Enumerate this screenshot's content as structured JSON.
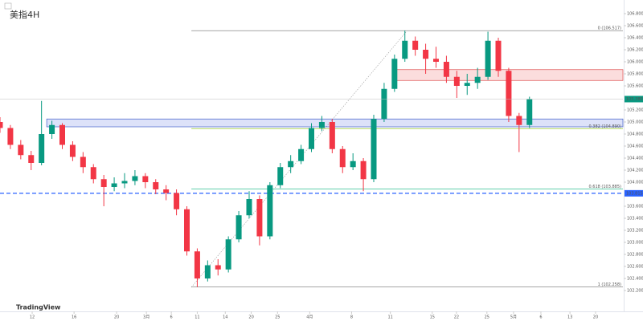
{
  "chart_data": {
    "type": "candlestick",
    "title": "美指4H",
    "watermark": "TradingView",
    "up_color": "#089981",
    "down_color": "#f23645",
    "xlim": [
      0,
      180
    ],
    "ylim": [
      102.0,
      107.0
    ],
    "grid": false,
    "x": [
      0,
      3,
      6,
      9,
      12,
      15,
      18,
      21,
      24,
      27,
      30,
      33,
      36,
      39,
      42,
      45,
      48,
      51,
      54,
      57,
      60,
      63,
      66,
      69,
      72,
      75,
      78,
      81,
      84,
      87,
      90,
      93,
      96,
      99,
      102,
      105,
      108,
      111,
      114,
      117,
      120,
      123,
      126,
      129,
      132,
      135,
      138,
      141,
      144,
      147,
      150,
      153
    ],
    "open": [
      105.0,
      104.9,
      104.62,
      104.45,
      104.32,
      104.8,
      104.95,
      104.62,
      104.42,
      104.25,
      104.05,
      103.92,
      103.98,
      104.02,
      104.1,
      104.0,
      103.88,
      103.82,
      103.55,
      102.85,
      102.4,
      102.62,
      102.55,
      103.05,
      103.45,
      103.72,
      103.1,
      103.95,
      104.25,
      104.35,
      104.55,
      104.9,
      105.0,
      104.55,
      104.25,
      104.35,
      104.05,
      105.05,
      105.55,
      106.05,
      106.35,
      106.2,
      106.05,
      106.0,
      105.75,
      105.6,
      105.65,
      105.75,
      106.35,
      105.85,
      105.1,
      104.95
    ],
    "high": [
      105.08,
      104.95,
      104.7,
      104.52,
      105.35,
      105.02,
      104.98,
      104.68,
      104.5,
      104.3,
      104.12,
      104.08,
      104.15,
      104.2,
      104.15,
      104.05,
      103.95,
      103.88,
      103.6,
      102.9,
      102.7,
      102.72,
      103.1,
      103.52,
      103.85,
      103.78,
      104.0,
      104.32,
      104.45,
      104.62,
      104.98,
      105.1,
      105.05,
      104.6,
      104.48,
      104.4,
      105.12,
      105.65,
      106.12,
      106.52,
      106.42,
      106.3,
      106.25,
      106.1,
      105.85,
      105.8,
      105.9,
      106.5,
      106.4,
      105.9,
      105.15,
      105.42
    ],
    "low": [
      104.82,
      104.55,
      104.38,
      104.2,
      104.28,
      104.72,
      104.55,
      104.35,
      104.15,
      103.98,
      103.6,
      103.85,
      103.9,
      103.95,
      103.9,
      103.8,
      103.7,
      103.45,
      102.78,
      102.26,
      102.35,
      102.45,
      102.5,
      103.0,
      103.4,
      102.95,
      103.05,
      103.9,
      104.15,
      104.3,
      104.5,
      104.85,
      104.48,
      104.15,
      104.2,
      103.85,
      104.0,
      105.0,
      105.5,
      106.0,
      106.1,
      105.8,
      105.9,
      105.65,
      105.4,
      105.45,
      105.55,
      105.7,
      105.75,
      105.0,
      104.5,
      104.9
    ],
    "close": [
      104.9,
      104.62,
      104.45,
      104.32,
      104.8,
      104.95,
      104.62,
      104.42,
      104.25,
      104.05,
      103.92,
      103.98,
      104.02,
      104.1,
      104.0,
      103.88,
      103.82,
      103.55,
      102.85,
      102.4,
      102.62,
      102.55,
      103.05,
      103.45,
      103.72,
      103.1,
      103.95,
      104.25,
      104.35,
      104.55,
      104.9,
      105.0,
      104.55,
      104.25,
      104.35,
      104.05,
      105.05,
      105.55,
      106.05,
      106.35,
      106.2,
      106.05,
      106.0,
      105.75,
      105.6,
      105.65,
      105.75,
      106.35,
      105.85,
      105.1,
      104.95,
      105.38
    ],
    "yticks": [
      {
        "value": 102.2,
        "label": "102.200"
      },
      {
        "value": 102.4,
        "label": "102.400"
      },
      {
        "value": 102.6,
        "label": "102.600"
      },
      {
        "value": 102.8,
        "label": "102.800"
      },
      {
        "value": 103.0,
        "label": "103.000"
      },
      {
        "value": 103.2,
        "label": "103.200"
      },
      {
        "value": 103.4,
        "label": "103.400"
      },
      {
        "value": 103.6,
        "label": "103.600"
      },
      {
        "value": 104.0,
        "label": "104.000"
      },
      {
        "value": 104.2,
        "label": "104.200"
      },
      {
        "value": 104.4,
        "label": "104.400"
      },
      {
        "value": 104.6,
        "label": "104.600"
      },
      {
        "value": 104.8,
        "label": "104.800"
      },
      {
        "value": 105.0,
        "label": "105.000"
      },
      {
        "value": 105.2,
        "label": "105.200"
      },
      {
        "value": 105.6,
        "label": "105.600"
      },
      {
        "value": 105.8,
        "label": "105.800"
      },
      {
        "value": 106.0,
        "label": "106.000"
      },
      {
        "value": 106.2,
        "label": "106.200"
      },
      {
        "value": 106.4,
        "label": "106.400"
      },
      {
        "value": 106.6,
        "label": "106.600"
      },
      {
        "value": 106.8,
        "label": "106.800"
      }
    ],
    "xticks": [
      {
        "value": 9.3,
        "label": "12"
      },
      {
        "value": 21.4,
        "label": "16"
      },
      {
        "value": 33.7,
        "label": "20"
      },
      {
        "value": 42.3,
        "label": "3月"
      },
      {
        "value": 49.5,
        "label": "6"
      },
      {
        "value": 57,
        "label": "11"
      },
      {
        "value": 65.1,
        "label": "14"
      },
      {
        "value": 72.6,
        "label": "20"
      },
      {
        "value": 80.2,
        "label": "25"
      },
      {
        "value": 89.5,
        "label": "4月"
      },
      {
        "value": 101.6,
        "label": "8"
      },
      {
        "value": 112.8,
        "label": "11"
      },
      {
        "value": 124.9,
        "label": "15"
      },
      {
        "value": 131.9,
        "label": "22"
      },
      {
        "value": 140.7,
        "label": "25"
      },
      {
        "value": 148.4,
        "label": "5月"
      },
      {
        "value": 156.3,
        "label": "6"
      },
      {
        "value": 164.7,
        "label": "13"
      },
      {
        "value": 172.1,
        "label": "20"
      }
    ],
    "levels": [
      {
        "value": 106.517,
        "label": "0 (106.517)",
        "color": "#888888",
        "from": 55.3
      },
      {
        "value": 104.89,
        "label": "0.382 (104.890)",
        "color": "#9acd32",
        "from": 55.3
      },
      {
        "value": 103.885,
        "label": "0.618 (103.885)",
        "color": "#2ebf91",
        "from": 55.3
      },
      {
        "value": 102.258,
        "label": "1 (102.258)",
        "color": "#888888",
        "from": 55.3
      }
    ],
    "zones": [
      {
        "low": 104.92,
        "high": 105.05,
        "from": 13.5,
        "color": "#3f5fc8",
        "fill": "rgba(120,140,230,0.25)"
      },
      {
        "low": 105.69,
        "high": 105.87,
        "from": 114,
        "color": "#e05050",
        "fill": "rgba(240,120,120,0.25)"
      }
    ],
    "price_line": {
      "value": 103.815,
      "label": "103.815",
      "color": "#2962ff"
    },
    "last_price": {
      "value": 105.38,
      "label": "105.380",
      "color": "#089981"
    }
  }
}
